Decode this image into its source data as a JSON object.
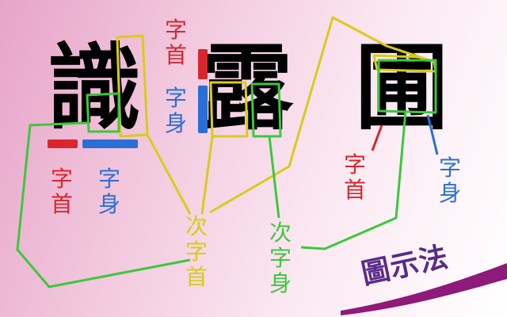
{
  "characters": [
    "識",
    "露",
    "圃"
  ],
  "labels": {
    "head_top": "字首",
    "body_top": "字身",
    "head_left": "字首",
    "body_left": "字身",
    "head_right": "字首",
    "body_right": "字身",
    "sub_head": "次字首",
    "sub_body": "次字身"
  },
  "logo_text": "圖示法",
  "colors": {
    "head": "#d9262e",
    "body": "#2a6fd6",
    "sub_head": "#d8cc1a",
    "sub_body": "#3cc83c",
    "logo": "#5a2a8a",
    "swoosh": "#8e1a7a"
  }
}
